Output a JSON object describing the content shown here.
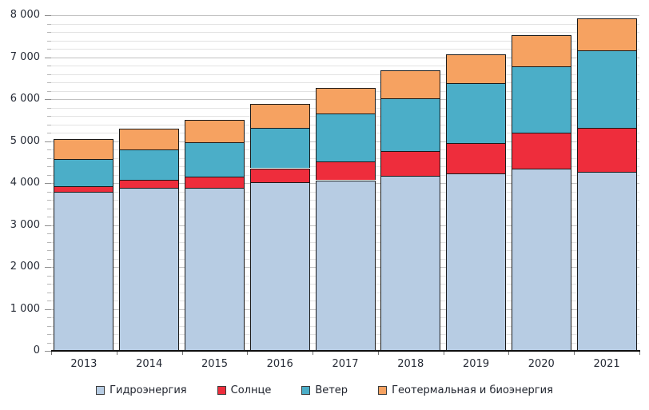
{
  "chart_data": {
    "type": "bar",
    "stacked": true,
    "title": "",
    "xlabel": "",
    "ylabel": "",
    "categories": [
      "2013",
      "2014",
      "2015",
      "2016",
      "2017",
      "2018",
      "2019",
      "2020",
      "2021"
    ],
    "series": [
      {
        "name": "Гидроэнергия",
        "color": "#B7CCE3",
        "values": [
          3797,
          3883,
          3892,
          4024,
          4066,
          4172,
          4222,
          4346,
          4274
        ]
      },
      {
        "name": "Солнце",
        "color": "#EE2D3C",
        "values": [
          135,
          198,
          257,
          328,
          454,
          585,
          724,
          846,
          1033
        ]
      },
      {
        "name": "Ветер",
        "color": "#4BAEC8",
        "values": [
          646,
          712,
          832,
          966,
          1140,
          1270,
          1430,
          1591,
          1862
        ]
      },
      {
        "name": "Геотермальная и биоэнергия",
        "color": "#F6A261",
        "values": [
          474,
          510,
          534,
          565,
          612,
          652,
          692,
          735,
          765
        ]
      }
    ],
    "totals": [
      5052,
      5303,
      5515,
      5883,
      6272,
      6679,
      7068,
      7518,
      7934
    ],
    "ylim": [
      0,
      8000
    ],
    "y_major_step": 1000,
    "y_minor_step": 200,
    "y_tick_labels": [
      "0",
      "1 000",
      "2 000",
      "3 000",
      "4 000",
      "5 000",
      "6 000",
      "7 000",
      "8 000"
    ],
    "grid": "horizontal",
    "legend_position": "bottom",
    "bar_border_color": "#1a1a1a"
  }
}
